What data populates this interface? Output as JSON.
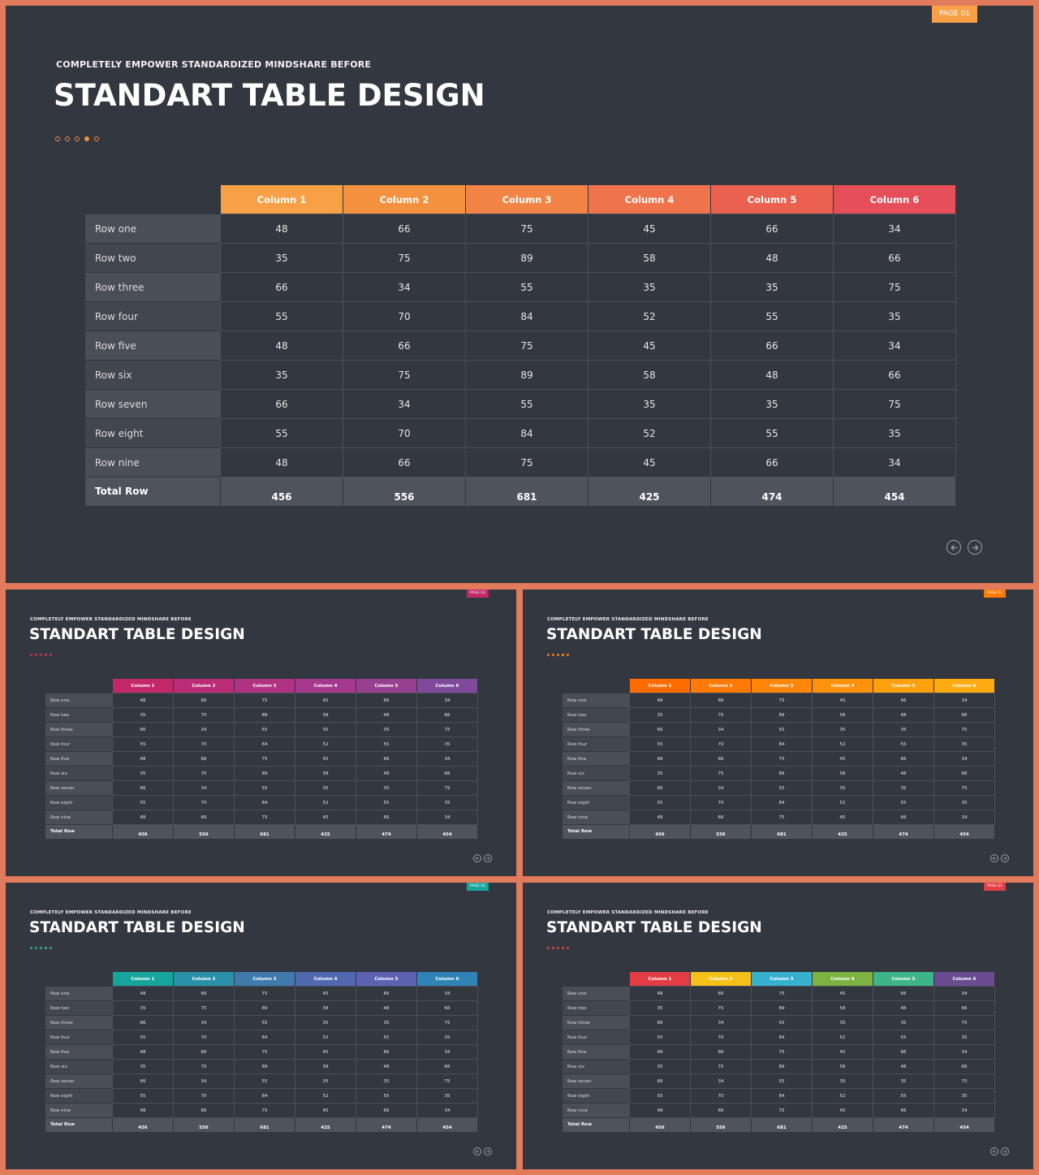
{
  "slide": {
    "page_badge": "PAGE 01",
    "subtitle": "COMPLETELY  EMPOWER  STANDARDIZED  MINDSHARE  BEFORE",
    "title": "STANDART TABLE DESIGN"
  },
  "table": {
    "columns": [
      "Column 1",
      "Column 2",
      "Column 3",
      "Column 4",
      "Column 5",
      "Column 6"
    ],
    "rows": [
      {
        "label": "Row one",
        "values": [
          "48",
          "66",
          "75",
          "45",
          "66",
          "34"
        ]
      },
      {
        "label": "Row two",
        "values": [
          "35",
          "75",
          "89",
          "58",
          "48",
          "66"
        ]
      },
      {
        "label": "Row three",
        "values": [
          "66",
          "34",
          "55",
          "35",
          "35",
          "75"
        ]
      },
      {
        "label": "Row four",
        "values": [
          "55",
          "70",
          "84",
          "52",
          "55",
          "35"
        ]
      },
      {
        "label": "Row five",
        "values": [
          "48",
          "66",
          "75",
          "45",
          "66",
          "34"
        ]
      },
      {
        "label": "Row six",
        "values": [
          "35",
          "75",
          "89",
          "58",
          "48",
          "66"
        ]
      },
      {
        "label": "Row seven",
        "values": [
          "66",
          "34",
          "55",
          "35",
          "35",
          "75"
        ]
      },
      {
        "label": "Row eight",
        "values": [
          "55",
          "70",
          "84",
          "52",
          "55",
          "35"
        ]
      },
      {
        "label": "Row nine",
        "values": [
          "48",
          "66",
          "75",
          "45",
          "66",
          "34"
        ]
      }
    ],
    "total": {
      "label": "Total Row",
      "values": [
        "456",
        "556",
        "681",
        "425",
        "474",
        "454"
      ]
    }
  },
  "themes": [
    {
      "id": "main",
      "badge_color": "#f7a046",
      "dot_color": "#f0913b",
      "header_colors": [
        "#f7a046",
        "#f4913f",
        "#f28446",
        "#ef744b",
        "#eb614f",
        "#e64e59"
      ]
    },
    {
      "id": "s1",
      "badge_color": "#c2286a",
      "dot_color": "#c4395c",
      "header_colors": [
        "#c2286a",
        "#b92c78",
        "#b03282",
        "#a5378c",
        "#97408f",
        "#7f4a9a"
      ]
    },
    {
      "id": "s2",
      "badge_color": "#ff7a00",
      "dot_color": "#ff8a1a",
      "header_colors": [
        "#ff6d00",
        "#ff7a05",
        "#ff8608",
        "#ff920b",
        "#ffa00e",
        "#ffac12"
      ]
    },
    {
      "id": "s3",
      "badge_color": "#16a59b",
      "dot_color": "#3db1a5",
      "header_colors": [
        "#16a59b",
        "#2991a8",
        "#3f7aad",
        "#5268b0",
        "#5d62b3",
        "#2f83b5"
      ]
    },
    {
      "id": "s4",
      "badge_color": "#e23c45",
      "dot_color": "#e9464b",
      "header_colors": [
        "#e23c45",
        "#f5c01a",
        "#36b0cf",
        "#7cb342",
        "#3eb48a",
        "#6b4b91"
      ]
    }
  ]
}
